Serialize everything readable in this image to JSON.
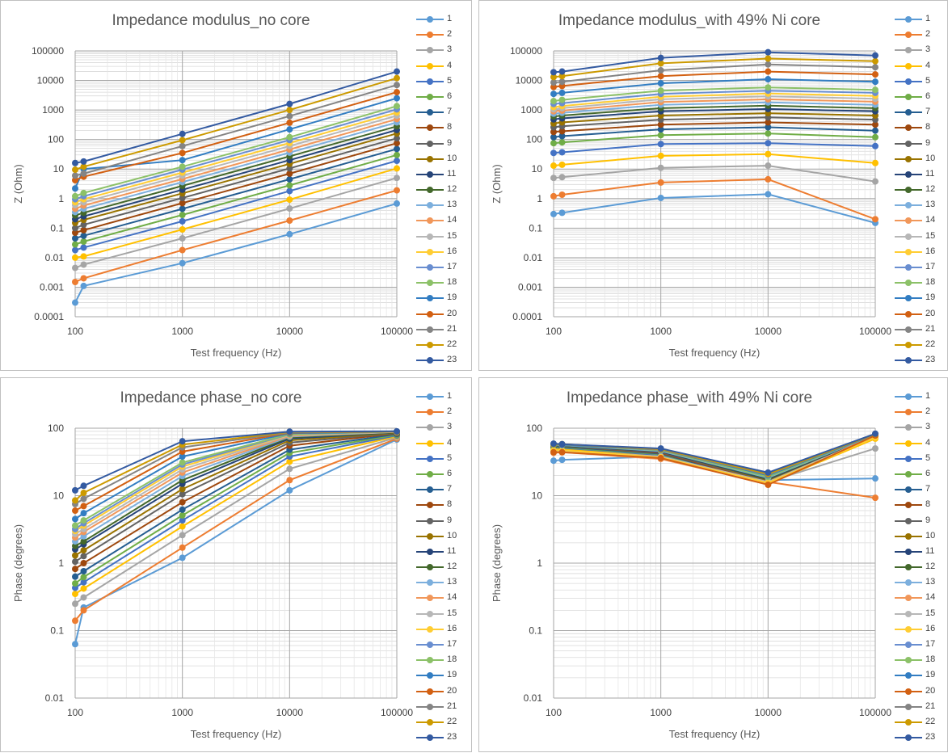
{
  "colors": [
    "#5b9bd5",
    "#ed7d31",
    "#a5a5a5",
    "#ffc000",
    "#4472c4",
    "#70ad47",
    "#255e91",
    "#9e480e",
    "#636363",
    "#997300",
    "#264478",
    "#43682b",
    "#7cafdd",
    "#f1975a",
    "#b7b7b7",
    "#ffcd33",
    "#698ed0",
    "#8cc168",
    "#327dc2",
    "#d26012",
    "#848484",
    "#cc9a00",
    "#335aa1"
  ],
  "chart_data": [
    {
      "type": "line",
      "title": "Impedance modulus_no core",
      "xlabel": "Test frequency (Hz)",
      "ylabel": "Z (Ohm)",
      "x_scale": "log",
      "y_scale": "log",
      "xlim": [
        100,
        100000
      ],
      "ylim": [
        0.0001,
        100000
      ],
      "x_ticks": [
        "100",
        "1000",
        "10000",
        "100000"
      ],
      "y_ticks": [
        "0.0001",
        "0.001",
        "0.01",
        "0.1",
        "1",
        "10",
        "100",
        "1000",
        "10000",
        "100000"
      ],
      "x": [
        100,
        120,
        1000,
        10000,
        100000
      ],
      "grid": true,
      "legend": "right",
      "series": [
        {
          "name": "1",
          "values": [
            0.0003,
            0.0011,
            0.0065,
            0.062,
            0.68
          ]
        },
        {
          "name": "2",
          "values": [
            0.0015,
            0.002,
            0.018,
            0.18,
            1.9
          ]
        },
        {
          "name": "3",
          "values": [
            0.0045,
            0.0058,
            0.045,
            0.46,
            5
          ]
        },
        {
          "name": "4",
          "values": [
            0.01,
            0.011,
            0.09,
            0.92,
            10.5
          ]
        },
        {
          "name": "5",
          "values": [
            0.018,
            0.022,
            0.17,
            1.8,
            19
          ]
        },
        {
          "name": "6",
          "values": [
            0.028,
            0.035,
            0.28,
            2.8,
            30
          ]
        },
        {
          "name": "7",
          "values": [
            0.045,
            0.055,
            0.45,
            4.5,
            48
          ]
        },
        {
          "name": "8",
          "values": [
            0.07,
            0.085,
            0.7,
            7,
            75
          ]
        },
        {
          "name": "9",
          "values": [
            0.1,
            0.13,
            1.05,
            10.5,
            110
          ]
        },
        {
          "name": "10",
          "values": [
            0.15,
            0.19,
            1.5,
            15,
            160
          ]
        },
        {
          "name": "11",
          "values": [
            0.2,
            0.25,
            2,
            20,
            210
          ]
        },
        {
          "name": "12",
          "values": [
            0.27,
            0.33,
            2.7,
            27,
            280
          ]
        },
        {
          "name": "13",
          "values": [
            0.35,
            0.45,
            3.6,
            36,
            380
          ]
        },
        {
          "name": "14",
          "values": [
            0.45,
            0.58,
            4.6,
            46,
            490
          ]
        },
        {
          "name": "15",
          "values": [
            0.6,
            0.75,
            6,
            60,
            640
          ]
        },
        {
          "name": "16",
          "values": [
            0.75,
            0.95,
            7.6,
            76,
            820
          ]
        },
        {
          "name": "17",
          "values": [
            0.95,
            1.2,
            9.6,
            96,
            1050
          ]
        },
        {
          "name": "18",
          "values": [
            1.2,
            1.55,
            12,
            120,
            1350
          ]
        },
        {
          "name": "19",
          "values": [
            2.2,
            10,
            20,
            220,
            2500
          ]
        },
        {
          "name": "20",
          "values": [
            4.2,
            5.5,
            35,
            370,
            4000
          ]
        },
        {
          "name": "21",
          "values": [
            6,
            7,
            60,
            620,
            7000
          ]
        },
        {
          "name": "22",
          "values": [
            9.5,
            12,
            95,
            1000,
            12000
          ]
        },
        {
          "name": "23",
          "values": [
            16,
            18,
            155,
            1600,
            20000
          ]
        }
      ]
    },
    {
      "type": "line",
      "title": "Impedance modulus_with 49% Ni core",
      "xlabel": "Test frequency (Hz)",
      "ylabel": "Z (Ohm)",
      "x_scale": "log",
      "y_scale": "log",
      "xlim": [
        100,
        100000
      ],
      "ylim": [
        0.0001,
        100000
      ],
      "x_ticks": [
        "100",
        "1000",
        "10000",
        "100000"
      ],
      "y_ticks": [
        "0.0001",
        "0.001",
        "0.01",
        "0.1",
        "1",
        "10",
        "100",
        "1000",
        "10000",
        "100000"
      ],
      "x": [
        100,
        120,
        1000,
        10000,
        100000
      ],
      "grid": true,
      "legend": "right",
      "series": [
        {
          "name": "1",
          "values": [
            0.3,
            0.33,
            1.05,
            1.4,
            0.15
          ]
        },
        {
          "name": "2",
          "values": [
            1.2,
            1.35,
            3.5,
            4.5,
            0.2
          ]
        },
        {
          "name": "3",
          "values": [
            5,
            5.3,
            11,
            13,
            3.8
          ]
        },
        {
          "name": "4",
          "values": [
            13,
            14,
            28,
            32,
            16
          ]
        },
        {
          "name": "5",
          "values": [
            35,
            37,
            70,
            75,
            60
          ]
        },
        {
          "name": "6",
          "values": [
            75,
            80,
            140,
            160,
            120
          ]
        },
        {
          "name": "7",
          "values": [
            120,
            130,
            220,
            260,
            200
          ]
        },
        {
          "name": "8",
          "values": [
            180,
            190,
            320,
            380,
            320
          ]
        },
        {
          "name": "9",
          "values": [
            260,
            280,
            470,
            560,
            470
          ]
        },
        {
          "name": "10",
          "values": [
            350,
            380,
            650,
            780,
            650
          ]
        },
        {
          "name": "11",
          "values": [
            480,
            520,
            900,
            1080,
            900
          ]
        },
        {
          "name": "12",
          "values": [
            600,
            650,
            1150,
            1400,
            1150
          ]
        },
        {
          "name": "13",
          "values": [
            750,
            800,
            1500,
            1800,
            1500
          ]
        },
        {
          "name": "14",
          "values": [
            900,
            950,
            1850,
            2300,
            1900
          ]
        },
        {
          "name": "15",
          "values": [
            1050,
            1150,
            2300,
            2900,
            2400
          ]
        },
        {
          "name": "16",
          "values": [
            1250,
            1350,
            2800,
            3600,
            3000
          ]
        },
        {
          "name": "17",
          "values": [
            1600,
            1700,
            3500,
            4500,
            3800
          ]
        },
        {
          "name": "18",
          "values": [
            2000,
            2200,
            4500,
            5800,
            4800
          ]
        },
        {
          "name": "19",
          "values": [
            3500,
            3800,
            8000,
            11000,
            9000
          ]
        },
        {
          "name": "20",
          "values": [
            6000,
            6500,
            14000,
            20000,
            16000
          ]
        },
        {
          "name": "21",
          "values": [
            8500,
            9000,
            22000,
            35000,
            28000
          ]
        },
        {
          "name": "22",
          "values": [
            13000,
            14000,
            38000,
            55000,
            45000
          ]
        },
        {
          "name": "23",
          "values": [
            19000,
            20000,
            58000,
            90000,
            70000
          ]
        }
      ]
    },
    {
      "type": "line",
      "title": "Impedance phase_no core",
      "xlabel": "Test frequency (Hz)",
      "ylabel": "Phase (degrees)",
      "x_scale": "log",
      "y_scale": "log",
      "xlim": [
        100,
        100000
      ],
      "ylim": [
        0.01,
        100
      ],
      "x_ticks": [
        "100",
        "1000",
        "10000",
        "100000"
      ],
      "y_ticks": [
        "0.01",
        "0.1",
        "1",
        "10",
        "100"
      ],
      "x": [
        100,
        120,
        1000,
        10000,
        100000
      ],
      "grid": true,
      "legend": "right",
      "series": [
        {
          "name": "1",
          "values": [
            0.063,
            0.22,
            1.2,
            12,
            68
          ]
        },
        {
          "name": "2",
          "values": [
            0.14,
            0.2,
            1.7,
            17,
            70
          ]
        },
        {
          "name": "3",
          "values": [
            0.25,
            0.31,
            2.6,
            25,
            73
          ]
        },
        {
          "name": "4",
          "values": [
            0.35,
            0.42,
            3.5,
            32,
            76
          ]
        },
        {
          "name": "5",
          "values": [
            0.43,
            0.52,
            4.3,
            38,
            78
          ]
        },
        {
          "name": "6",
          "values": [
            0.5,
            0.62,
            5.1,
            43,
            80
          ]
        },
        {
          "name": "7",
          "values": [
            0.63,
            0.76,
            6.2,
            48,
            82
          ]
        },
        {
          "name": "8",
          "values": [
            0.82,
            1,
            8,
            55,
            84
          ]
        },
        {
          "name": "9",
          "values": [
            1.05,
            1.27,
            10.5,
            61,
            85
          ]
        },
        {
          "name": "10",
          "values": [
            1.3,
            1.55,
            12.5,
            66,
            86
          ]
        },
        {
          "name": "11",
          "values": [
            1.6,
            1.9,
            15,
            70,
            87
          ]
        },
        {
          "name": "12",
          "values": [
            1.8,
            2.1,
            17,
            73,
            87
          ]
        },
        {
          "name": "13",
          "values": [
            2.1,
            2.5,
            19.5,
            75,
            88
          ]
        },
        {
          "name": "14",
          "values": [
            2.4,
            2.9,
            22,
            77,
            88
          ]
        },
        {
          "name": "15",
          "values": [
            2.7,
            3.2,
            24.5,
            79,
            88
          ]
        },
        {
          "name": "16",
          "values": [
            3,
            3.6,
            27,
            80,
            89
          ]
        },
        {
          "name": "17",
          "values": [
            3.2,
            3.9,
            29,
            81,
            89
          ]
        },
        {
          "name": "18",
          "values": [
            3.6,
            4.3,
            31,
            82,
            89
          ]
        },
        {
          "name": "19",
          "values": [
            4.5,
            5.5,
            38,
            84,
            89
          ]
        },
        {
          "name": "20",
          "values": [
            6,
            7,
            45,
            86,
            89
          ]
        },
        {
          "name": "21",
          "values": [
            7.5,
            9,
            52,
            87,
            89
          ]
        },
        {
          "name": "22",
          "values": [
            8.5,
            11,
            57,
            88,
            89
          ]
        },
        {
          "name": "23",
          "values": [
            12,
            14,
            64,
            89,
            90
          ]
        }
      ]
    },
    {
      "type": "line",
      "title": "Impedance phase_with 49% Ni core",
      "xlabel": "Test frequency (Hz)",
      "ylabel": "Phase (degrees)",
      "x_scale": "log",
      "y_scale": "log",
      "xlim": [
        100,
        100000
      ],
      "ylim": [
        0.01,
        100
      ],
      "x_ticks": [
        "100",
        "1000",
        "10000",
        "100000"
      ],
      "y_ticks": [
        "0.01",
        "0.1",
        "1",
        "10",
        "100"
      ],
      "x": [
        100,
        120,
        1000,
        10000,
        100000
      ],
      "grid": true,
      "legend": "right",
      "series": [
        {
          "name": "1",
          "values": [
            33,
            34,
            38,
            17,
            18
          ]
        },
        {
          "name": "2",
          "values": [
            45,
            45,
            36,
            16,
            9.3
          ]
        },
        {
          "name": "3",
          "values": [
            48,
            47,
            37,
            16,
            50
          ]
        },
        {
          "name": "4",
          "values": [
            50,
            49,
            38,
            15,
            70
          ]
        },
        {
          "name": "5",
          "values": [
            52,
            51,
            40,
            15,
            75
          ]
        },
        {
          "name": "6",
          "values": [
            53,
            52,
            41,
            15,
            76
          ]
        },
        {
          "name": "7",
          "values": [
            54,
            53,
            42,
            15.5,
            77
          ]
        },
        {
          "name": "8",
          "values": [
            55,
            54,
            43,
            16,
            78
          ]
        },
        {
          "name": "9",
          "values": [
            55,
            54,
            44,
            16.5,
            78
          ]
        },
        {
          "name": "10",
          "values": [
            56,
            55,
            45,
            17,
            79
          ]
        },
        {
          "name": "11",
          "values": [
            56,
            55,
            45,
            17.5,
            79
          ]
        },
        {
          "name": "12",
          "values": [
            56,
            55,
            46,
            18,
            80
          ]
        },
        {
          "name": "13",
          "values": [
            57,
            56,
            46,
            18.5,
            80
          ]
        },
        {
          "name": "14",
          "values": [
            43,
            44,
            35,
            15,
            79
          ]
        },
        {
          "name": "15",
          "values": [
            46,
            46,
            38,
            16,
            76
          ]
        },
        {
          "name": "16",
          "values": [
            47,
            47,
            37,
            15.5,
            73
          ]
        },
        {
          "name": "17",
          "values": [
            57,
            56,
            47,
            19,
            80
          ]
        },
        {
          "name": "18",
          "values": [
            57,
            57,
            47,
            19,
            81
          ]
        },
        {
          "name": "19",
          "values": [
            58,
            57,
            48,
            20,
            81
          ]
        },
        {
          "name": "20",
          "values": [
            44,
            44,
            36,
            14.5,
            78
          ]
        },
        {
          "name": "21",
          "values": [
            58,
            58,
            48,
            20.5,
            82
          ]
        },
        {
          "name": "22",
          "values": [
            58,
            58,
            49,
            21,
            82
          ]
        },
        {
          "name": "23",
          "values": [
            59,
            58,
            50,
            22,
            83
          ]
        }
      ]
    }
  ]
}
